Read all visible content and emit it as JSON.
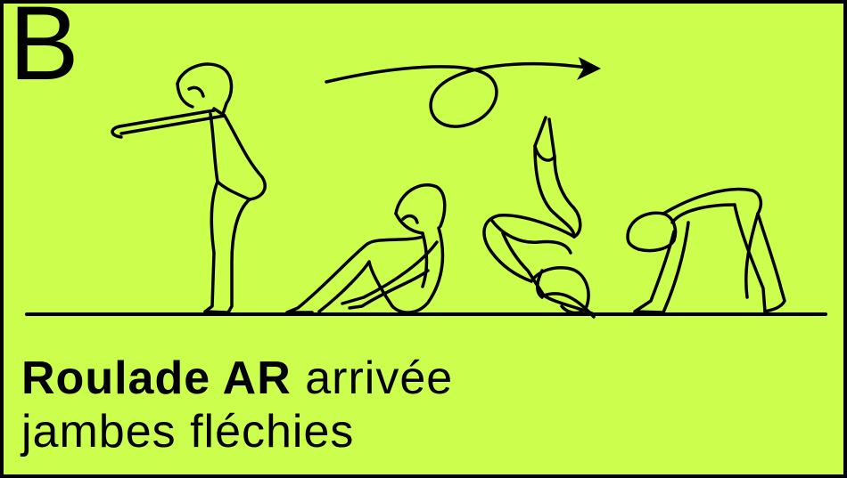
{
  "card": {
    "letter": "B",
    "title_bold": "Roulade AR",
    "title_rest": "arrivée",
    "title_line2": "jambes fléchies",
    "background_color": "#CCFF4D",
    "stroke_color": "#000000"
  },
  "figures": [
    {
      "name": "standing-gymnast-arms-forward",
      "stage": 1
    },
    {
      "name": "seated-gymnast-hugging-knees",
      "stage": 2
    },
    {
      "name": "gymnast-rolling-backward-legs-up",
      "stage": 3
    },
    {
      "name": "gymnast-landing-crouched-legs-bent",
      "stage": 4
    }
  ],
  "arrow": {
    "name": "backward-roll-arrow-icon"
  }
}
